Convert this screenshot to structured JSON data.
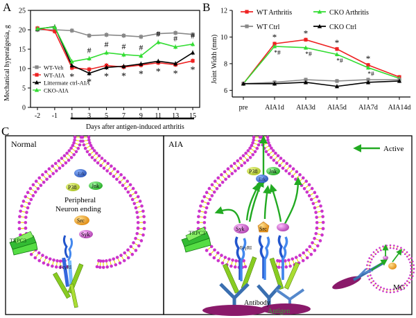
{
  "panels": {
    "a": "A",
    "b": "B",
    "c": "C"
  },
  "diagram": {
    "normal_title": "Normal",
    "aia_title": "AIA",
    "active_label": "Active",
    "normal_labels": {
      "erk": "Erk",
      "p38": "P38",
      "jnk": "Jnk",
      "neuron_line1": "Peripheral",
      "neuron_line2": "Neuron ending",
      "src": "Src",
      "syk": "Syk",
      "trpc3": "TRPC3",
      "receptor": "FcγRI"
    },
    "aia_labels": {
      "p38": "P38",
      "jnk": "Jnk",
      "erk": "Erk",
      "trpc3": "TRPC3",
      "syk": "Syk",
      "src": "Src",
      "receptor": "FcγRI",
      "antibody": "Antibody",
      "antigen": "Antigen",
      "mc": "MC"
    },
    "colors": {
      "membrane_head": "#cc33cc",
      "membrane_tail": "#e8e000",
      "arrow": "#22aa22",
      "erk": "#3b6fd0",
      "p38": "#c8e040",
      "jnk": "#44cc44",
      "src": "#f0a020",
      "syk": "#d070d0"
    }
  },
  "chart_data": [
    {
      "type": "line",
      "ylabel": "Mechanical hyperalgesia, g",
      "xlabel": "Days after antigen-induced arthritis",
      "x": [
        "-2",
        "-1",
        "1",
        "3",
        "5",
        "7",
        "9",
        "11",
        "13",
        "15"
      ],
      "ylim": [
        0,
        25
      ],
      "yticks": [
        "0",
        "5",
        "10",
        "15",
        "20",
        "25"
      ],
      "legend_position": "lower-left",
      "series": [
        {
          "name": "WT-Veh",
          "color": "#888888",
          "marker": "square",
          "values": [
            20.0,
            20.0,
            19.8,
            18.5,
            18.7,
            18.5,
            18.2,
            19.0,
            19.2,
            18.8
          ]
        },
        {
          "name": "WT-AIA",
          "color": "#ee2222",
          "marker": "square",
          "values": [
            20.4,
            19.6,
            10.2,
            9.8,
            10.8,
            10.4,
            10.9,
            11.5,
            11.0,
            12.0
          ]
        },
        {
          "name": "Littermate ctrl-AIA",
          "color": "#000000",
          "marker": "triangle",
          "values": [
            20.2,
            20.8,
            10.8,
            8.8,
            10.3,
            10.6,
            11.2,
            11.9,
            11.3,
            14.1
          ]
        },
        {
          "name": "CKO-AIA",
          "color": "#33dd33",
          "marker": "triangle",
          "values": [
            20.3,
            20.7,
            11.8,
            12.6,
            14.1,
            13.6,
            13.3,
            16.8,
            15.6,
            16.3
          ]
        }
      ],
      "annotations": {
        "hash_positions": [
          "3",
          "5",
          "7",
          "9",
          "11",
          "13",
          "15"
        ],
        "hash_symbol": "#",
        "star_positions": [
          "1",
          "3",
          "5",
          "7",
          "9",
          "11",
          "13",
          "15"
        ],
        "star_symbol": "*"
      }
    },
    {
      "type": "line",
      "ylabel": "Joint Width (mm)",
      "x": [
        "pre",
        "AIA1d",
        "AIA3d",
        "AIA5d",
        "AIA7d",
        "AIA14d"
      ],
      "ylim": [
        5.5,
        12
      ],
      "yticks": [
        "6",
        "8",
        "10",
        "12"
      ],
      "legend_position": "top",
      "series": [
        {
          "name": "WT Arthritis",
          "color": "#ee2222",
          "marker": "square",
          "values": [
            6.5,
            9.5,
            9.8,
            9.1,
            7.9,
            7.0
          ]
        },
        {
          "name": "CKO Arthritis",
          "color": "#33dd33",
          "marker": "triangle",
          "values": [
            6.5,
            9.3,
            9.2,
            8.7,
            7.7,
            6.9
          ]
        },
        {
          "name": "WT Ctrl",
          "color": "#888888",
          "marker": "square",
          "values": [
            6.5,
            6.6,
            6.8,
            6.7,
            6.8,
            6.8
          ]
        },
        {
          "name": "CKO Ctrl",
          "color": "#000000",
          "marker": "triangle",
          "values": [
            6.5,
            6.5,
            6.6,
            6.3,
            6.6,
            6.7
          ]
        }
      ],
      "annotations": {
        "star_positions": [
          "AIA1d",
          "AIA3d",
          "AIA5d",
          "AIA7d"
        ],
        "star_symbol": "*",
        "starhash_positions": [
          "AIA1d",
          "AIA3d",
          "AIA5d",
          "AIA7d"
        ],
        "starhash_symbol": "*#"
      }
    }
  ]
}
